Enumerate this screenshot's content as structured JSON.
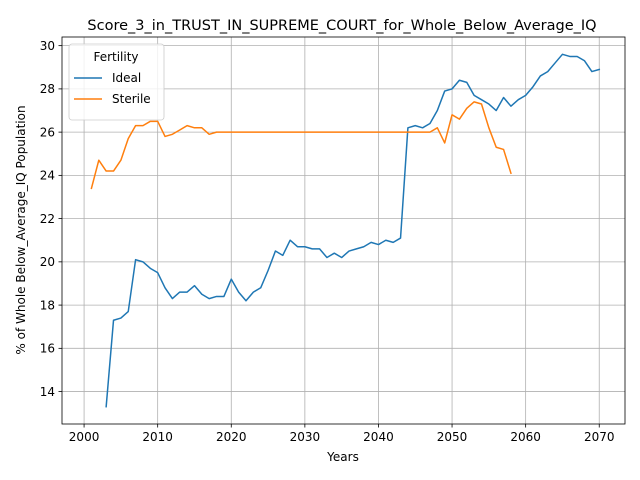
{
  "chart_data": {
    "type": "line",
    "title": "Score_3_in_TRUST_IN_SUPREME_COURT_for_Whole_Below_Average_IQ",
    "xlabel": "Years",
    "ylabel": "% of Whole Below_Average_IQ Population",
    "xlim": [
      1997,
      2073.5
    ],
    "ylim": [
      12.5,
      30.4
    ],
    "xticks": [
      2000,
      2010,
      2020,
      2030,
      2040,
      2050,
      2060,
      2070
    ],
    "yticks": [
      14,
      16,
      18,
      20,
      22,
      24,
      26,
      28,
      30
    ],
    "grid": true,
    "legend": {
      "title": "Fertility",
      "placement": "upper-left"
    },
    "series": [
      {
        "name": "Ideal",
        "color": "#1f77b4",
        "x": [
          2003,
          2004,
          2005,
          2006,
          2007,
          2008,
          2009,
          2010,
          2011,
          2012,
          2013,
          2014,
          2015,
          2016,
          2017,
          2018,
          2019,
          2020,
          2021,
          2022,
          2023,
          2024,
          2025,
          2026,
          2027,
          2028,
          2029,
          2030,
          2031,
          2032,
          2033,
          2034,
          2035,
          2036,
          2037,
          2038,
          2039,
          2040,
          2041,
          2042,
          2043,
          2044,
          2045,
          2046,
          2047,
          2048,
          2049,
          2050,
          2051,
          2052,
          2053,
          2054,
          2055,
          2056,
          2057,
          2058,
          2059,
          2060,
          2061,
          2062,
          2063,
          2064,
          2065,
          2066,
          2067,
          2068,
          2069,
          2070
        ],
        "y": [
          13.3,
          17.3,
          17.4,
          17.7,
          20.1,
          20.0,
          19.7,
          19.5,
          18.8,
          18.3,
          18.6,
          18.6,
          18.9,
          18.5,
          18.3,
          18.4,
          18.4,
          19.2,
          18.6,
          18.2,
          18.6,
          18.8,
          19.6,
          20.5,
          20.3,
          21.0,
          20.7,
          20.7,
          20.6,
          20.6,
          20.2,
          20.4,
          20.2,
          20.5,
          20.6,
          20.7,
          20.9,
          20.8,
          21.0,
          20.9,
          21.1,
          26.2,
          26.3,
          26.2,
          26.4,
          27.0,
          27.9,
          28.0,
          28.4,
          28.3,
          27.7,
          27.5,
          27.3,
          27.0,
          27.6,
          27.2,
          27.5,
          27.7,
          28.1,
          28.6,
          28.8,
          29.2,
          29.6,
          29.5,
          29.5,
          29.3,
          28.8,
          28.9
        ]
      },
      {
        "name": "Sterile",
        "color": "#ff7f0e",
        "x": [
          2001,
          2002,
          2003,
          2004,
          2005,
          2006,
          2007,
          2008,
          2009,
          2010,
          2011,
          2012,
          2013,
          2014,
          2015,
          2016,
          2017,
          2018,
          2019,
          2020,
          2021,
          2022,
          2023,
          2024,
          2025,
          2026,
          2027,
          2028,
          2029,
          2030,
          2031,
          2032,
          2033,
          2034,
          2035,
          2036,
          2037,
          2038,
          2039,
          2040,
          2041,
          2042,
          2043,
          2044,
          2045,
          2046,
          2047,
          2048,
          2049,
          2050,
          2051,
          2052,
          2053,
          2054,
          2055,
          2056,
          2057,
          2058
        ],
        "y": [
          23.4,
          24.7,
          24.2,
          24.2,
          24.7,
          25.7,
          26.3,
          26.3,
          26.5,
          26.5,
          25.8,
          25.9,
          26.1,
          26.3,
          26.2,
          26.2,
          25.9,
          26.0,
          26.0,
          26.0,
          26.0,
          26.0,
          26.0,
          26.0,
          26.0,
          26.0,
          26.0,
          26.0,
          26.0,
          26.0,
          26.0,
          26.0,
          26.0,
          26.0,
          26.0,
          26.0,
          26.0,
          26.0,
          26.0,
          26.0,
          26.0,
          26.0,
          26.0,
          26.0,
          26.0,
          26.0,
          26.0,
          26.2,
          25.5,
          26.8,
          26.6,
          27.1,
          27.4,
          27.3,
          26.2,
          25.3,
          25.2,
          24.1
        ]
      }
    ]
  }
}
